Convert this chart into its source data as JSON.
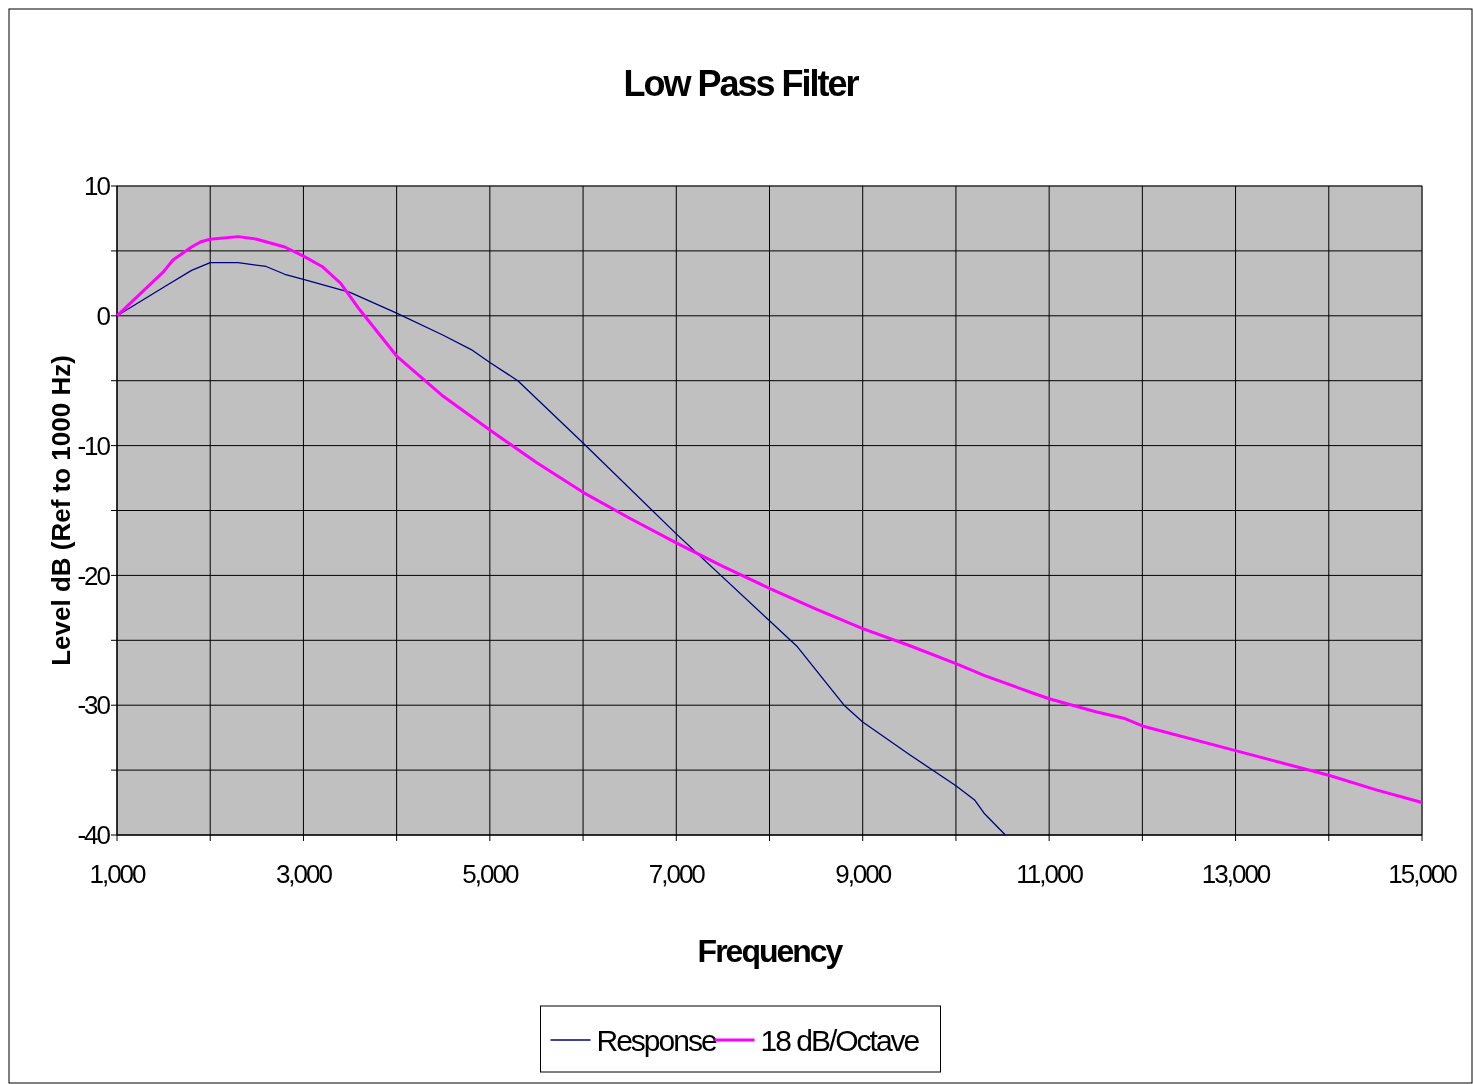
{
  "chart_data": {
    "type": "line",
    "title": "Low Pass Filter",
    "xlabel": "Frequency",
    "ylabel": "Level dB (Ref to 1000 Hz)",
    "xlim": [
      1000,
      15000
    ],
    "xticks": [
      {
        "value": 1000,
        "label": "1,000"
      },
      {
        "value": 2000,
        "label": null
      },
      {
        "value": 3000,
        "label": "3,000"
      },
      {
        "value": 4000,
        "label": null
      },
      {
        "value": 5000,
        "label": "5,000"
      },
      {
        "value": 6000,
        "label": null
      },
      {
        "value": 7000,
        "label": "7,000"
      },
      {
        "value": 8000,
        "label": null
      },
      {
        "value": 9000,
        "label": "9,000"
      },
      {
        "value": 10000,
        "label": null
      },
      {
        "value": 11000,
        "label": "11,000"
      },
      {
        "value": 12000,
        "label": null
      },
      {
        "value": 13000,
        "label": "13,000"
      },
      {
        "value": 14000,
        "label": null
      },
      {
        "value": 15000,
        "label": "15,000"
      }
    ],
    "ylim": [
      -40,
      10
    ],
    "yticks": [
      10,
      {
        "value": 5,
        "label": null
      },
      0,
      {
        "value": -5,
        "label": null
      },
      -10,
      {
        "value": -15,
        "label": null
      },
      -20,
      {
        "value": -25,
        "label": null
      },
      -30,
      {
        "value": -35,
        "label": null
      },
      -40
    ],
    "grid": true,
    "legend": "bottom",
    "marker": "none",
    "series": [
      {
        "name": "Response",
        "color": "#000080",
        "x": [
          1000,
          1500,
          1800,
          2000,
          2300,
          2600,
          2800,
          3000,
          3500,
          4000,
          4500,
          4800,
          5000,
          5300,
          6000,
          7000,
          8000,
          8300,
          8600,
          8800,
          9000,
          9500,
          10000,
          10200,
          10300,
          10530
        ],
        "values": [
          0,
          2.2,
          3.5,
          4.1,
          4.1,
          3.8,
          3.2,
          2.8,
          1.8,
          0.2,
          -1.5,
          -2.6,
          -3.6,
          -5,
          -9.8,
          -16.8,
          -23.5,
          -25.5,
          -28.2,
          -30,
          -31.3,
          -33.8,
          -36.2,
          -37.3,
          -38.3,
          -40
        ]
      },
      {
        "name": "18 dB/Octave",
        "color": "#ff00ff",
        "x": [
          1000,
          1500,
          1600,
          1800,
          1900,
          2000,
          2300,
          2500,
          2800,
          3000,
          3200,
          3400,
          3600,
          4000,
          4500,
          5000,
          5500,
          6000,
          6500,
          7000,
          7500,
          8000,
          8500,
          9000,
          9500,
          10000,
          10200,
          10300,
          10800,
          11000,
          11500,
          11800,
          12000,
          13000,
          14000,
          14500,
          15000
        ],
        "values": [
          0,
          3.4,
          4.3,
          5.3,
          5.7,
          5.9,
          6.1,
          5.9,
          5.3,
          4.6,
          3.8,
          2.5,
          0.5,
          -3.1,
          -6.2,
          -8.8,
          -11.3,
          -13.6,
          -15.6,
          -17.5,
          -19.3,
          -21,
          -22.6,
          -24.1,
          -25.4,
          -26.8,
          -27.4,
          -27.7,
          -29,
          -29.5,
          -30.5,
          -31,
          -31.6,
          -33.5,
          -35.4,
          -36.5,
          -37.5
        ]
      }
    ]
  }
}
